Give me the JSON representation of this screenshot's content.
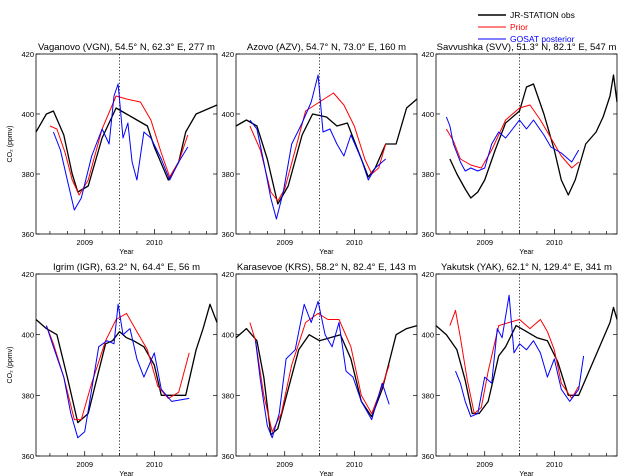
{
  "legend": [
    {
      "label": "JR-STATION obs",
      "color": "#000000"
    },
    {
      "label": "Prior",
      "color": "#ff0000"
    },
    {
      "label": "GOSAT posterior",
      "color": "#0000ff"
    }
  ],
  "chart_data": [
    {
      "type": "line",
      "title": "Vaganovo (VGN), 54.5°  N,  62.3°  E, 277 m",
      "xlabel": "Year",
      "ylabel": "CO₂ (ppmv)",
      "xlim": [
        2008.3,
        2010.9
      ],
      "ylim": [
        360,
        420
      ],
      "yticks": [
        360,
        380,
        400,
        420
      ],
      "xticks": [
        "2009",
        "2010"
      ],
      "xtick_values": [
        2009.0,
        2010.0
      ],
      "vline": 2009.5,
      "series": [
        {
          "name": "JR-STATION obs",
          "color": "#000000",
          "x": [
            2008.3,
            2008.45,
            2008.55,
            2008.7,
            2008.82,
            2008.9,
            2009.05,
            2009.25,
            2009.45,
            2009.6,
            2009.75,
            2009.9,
            2010.0,
            2010.2,
            2010.35,
            2010.45,
            2010.6,
            2010.9
          ],
          "y": [
            394,
            400,
            401,
            393,
            380,
            374,
            376,
            392,
            402,
            400,
            398,
            396,
            389,
            378,
            384,
            394,
            400,
            403
          ]
        },
        {
          "name": "Prior",
          "color": "#ff0000",
          "x": [
            2008.5,
            2008.6,
            2008.72,
            2008.82,
            2008.92,
            2009.05,
            2009.25,
            2009.45,
            2009.6,
            2009.8,
            2009.95,
            2010.1,
            2010.22,
            2010.35,
            2010.48
          ],
          "y": [
            396,
            395,
            387,
            378,
            373,
            378,
            395,
            406,
            405,
            404,
            398,
            387,
            379,
            384,
            393
          ]
        },
        {
          "name": "GOSAT posterior",
          "color": "#0000ff",
          "x": [
            2008.55,
            2008.65,
            2008.75,
            2008.85,
            2008.95,
            2009.1,
            2009.25,
            2009.35,
            2009.42,
            2009.48,
            2009.55,
            2009.62,
            2009.68,
            2009.75,
            2009.85,
            2009.95,
            2010.1,
            2010.22,
            2010.35,
            2010.48
          ],
          "y": [
            394,
            388,
            378,
            368,
            372,
            386,
            395,
            390,
            406,
            410,
            392,
            397,
            384,
            378,
            394,
            392,
            385,
            378,
            384,
            389
          ]
        }
      ]
    },
    {
      "type": "line",
      "title": "Azovo (AZV), 54.7°  N,  73.0°  E, 160 m",
      "xlabel": "Year",
      "ylabel": "",
      "xlim": [
        2008.3,
        2010.9
      ],
      "ylim": [
        360,
        420
      ],
      "yticks": [
        360,
        380,
        400,
        420
      ],
      "xticks": [
        "2009",
        "2010"
      ],
      "xtick_values": [
        2009.0,
        2010.0
      ],
      "vline": 2009.5,
      "series": [
        {
          "name": "JR-STATION obs",
          "color": "#000000",
          "x": [
            2008.3,
            2008.45,
            2008.6,
            2008.75,
            2008.9,
            2009.05,
            2009.25,
            2009.4,
            2009.6,
            2009.75,
            2009.9,
            2010.05,
            2010.2,
            2010.3,
            2010.45,
            2010.6,
            2010.75,
            2010.9
          ],
          "y": [
            396,
            398,
            396,
            385,
            370,
            376,
            393,
            400,
            399,
            396,
            397,
            388,
            379,
            382,
            390,
            390,
            402,
            405
          ]
        },
        {
          "name": "Prior",
          "color": "#ff0000",
          "x": [
            2008.5,
            2008.65,
            2008.8,
            2008.9,
            2009.0,
            2009.15,
            2009.3,
            2009.5,
            2009.7,
            2009.85,
            2010.0,
            2010.15,
            2010.25,
            2010.35,
            2010.45
          ],
          "y": [
            396,
            388,
            374,
            371,
            375,
            388,
            401,
            404,
            407,
            403,
            396,
            385,
            380,
            382,
            390
          ]
        },
        {
          "name": "GOSAT posterior",
          "color": "#0000ff",
          "x": [
            2008.5,
            2008.6,
            2008.7,
            2008.8,
            2008.88,
            2008.98,
            2009.1,
            2009.25,
            2009.38,
            2009.48,
            2009.55,
            2009.65,
            2009.75,
            2009.85,
            2009.95,
            2010.1,
            2010.2,
            2010.3,
            2010.45
          ],
          "y": [
            398,
            395,
            384,
            372,
            365,
            374,
            390,
            397,
            404,
            413,
            394,
            395,
            390,
            386,
            393,
            385,
            378,
            382,
            385
          ]
        }
      ]
    },
    {
      "type": "line",
      "title": "Savvushka (SVV), 51.3°  N,  82.1°  E, 547 m",
      "xlabel": "Year",
      "ylabel": "",
      "xlim": [
        2008.3,
        2010.9
      ],
      "ylim": [
        360,
        420
      ],
      "yticks": [
        360,
        380,
        400,
        420
      ],
      "xticks": [
        "2009",
        "2010"
      ],
      "xtick_values": [
        2009.0,
        2010.0
      ],
      "vline": 2009.5,
      "series": [
        {
          "name": "JR-STATION obs",
          "color": "#000000",
          "x": [
            2008.5,
            2008.6,
            2008.72,
            2008.8,
            2008.9,
            2009.0,
            2009.15,
            2009.3,
            2009.5,
            2009.6,
            2009.7,
            2009.85,
            2010.0,
            2010.1,
            2010.2,
            2010.3,
            2010.45,
            2010.6,
            2010.7,
            2010.8,
            2010.85,
            2010.9
          ],
          "y": [
            385,
            380,
            375,
            372,
            374,
            378,
            388,
            397,
            401,
            409,
            410,
            400,
            388,
            378,
            373,
            378,
            390,
            394,
            399,
            406,
            413,
            404
          ]
        },
        {
          "name": "Prior",
          "color": "#ff0000",
          "x": [
            2008.45,
            2008.55,
            2008.65,
            2008.8,
            2008.95,
            2009.1,
            2009.3,
            2009.5,
            2009.65,
            2009.8,
            2009.95,
            2010.1,
            2010.25,
            2010.35
          ],
          "y": [
            395,
            391,
            385,
            383,
            382,
            388,
            398,
            402,
            403,
            398,
            392,
            386,
            382,
            384
          ]
        },
        {
          "name": "GOSAT posterior",
          "color": "#0000ff",
          "x": [
            2008.45,
            2008.5,
            2008.55,
            2008.65,
            2008.72,
            2008.8,
            2008.9,
            2009.0,
            2009.1,
            2009.2,
            2009.3,
            2009.4,
            2009.5,
            2009.6,
            2009.7,
            2009.85,
            2009.95,
            2010.1,
            2010.25,
            2010.35
          ],
          "y": [
            399,
            396,
            390,
            384,
            381,
            382,
            381,
            382,
            390,
            394,
            392,
            395,
            398,
            395,
            398,
            393,
            389,
            387,
            384,
            388
          ]
        }
      ]
    },
    {
      "type": "line",
      "title": "Igrim (IGR), 63.2°  N,  64.4°  E,  56 m",
      "xlabel": "Year",
      "ylabel": "CO₂ (ppmv)",
      "xlim": [
        2008.3,
        2010.9
      ],
      "ylim": [
        360,
        420
      ],
      "yticks": [
        360,
        380,
        400,
        420
      ],
      "xticks": [
        "2009",
        "2010"
      ],
      "xtick_values": [
        2009.0,
        2010.0
      ],
      "vline": 2009.5,
      "series": [
        {
          "name": "JR-STATION obs",
          "color": "#000000",
          "x": [
            2008.3,
            2008.45,
            2008.6,
            2008.75,
            2008.9,
            2009.05,
            2009.2,
            2009.3,
            2009.4,
            2009.5,
            2009.6,
            2009.7,
            2009.85,
            2010.0,
            2010.1,
            2010.25,
            2010.45,
            2010.6,
            2010.7,
            2010.8,
            2010.9
          ],
          "y": [
            405,
            402,
            400,
            386,
            371,
            374,
            388,
            397,
            398,
            401,
            399,
            398,
            396,
            390,
            380,
            380,
            380,
            395,
            402,
            410,
            404
          ]
        },
        {
          "name": "Prior",
          "color": "#ff0000",
          "x": [
            2008.45,
            2008.55,
            2008.7,
            2008.85,
            2008.95,
            2009.1,
            2009.3,
            2009.45,
            2009.6,
            2009.75,
            2009.9,
            2010.05,
            2010.2,
            2010.35,
            2010.5
          ],
          "y": [
            403,
            397,
            386,
            372,
            372,
            384,
            398,
            405,
            407,
            401,
            395,
            383,
            379,
            381,
            394
          ]
        },
        {
          "name": "GOSAT posterior",
          "color": "#0000ff",
          "x": [
            2008.45,
            2008.55,
            2008.7,
            2008.8,
            2008.9,
            2009.0,
            2009.1,
            2009.2,
            2009.32,
            2009.42,
            2009.48,
            2009.55,
            2009.65,
            2009.75,
            2009.85,
            2010.0,
            2010.1,
            2010.25,
            2010.5
          ],
          "y": [
            403,
            396,
            386,
            374,
            366,
            368,
            382,
            396,
            398,
            397,
            410,
            400,
            402,
            392,
            386,
            394,
            382,
            378,
            379
          ]
        }
      ]
    },
    {
      "type": "line",
      "title": "Karasevoe (KRS), 58.2°  N,  82.4°  E, 143 m",
      "xlabel": "Year",
      "ylabel": "",
      "xlim": [
        2008.3,
        2010.9
      ],
      "ylim": [
        360,
        420
      ],
      "yticks": [
        360,
        380,
        400,
        420
      ],
      "xticks": [
        "2009",
        "2010"
      ],
      "xtick_values": [
        2009.0,
        2010.0
      ],
      "vline": 2009.5,
      "series": [
        {
          "name": "JR-STATION obs",
          "color": "#000000",
          "x": [
            2008.3,
            2008.45,
            2008.6,
            2008.7,
            2008.8,
            2008.9,
            2009.05,
            2009.2,
            2009.35,
            2009.5,
            2009.65,
            2009.8,
            2009.95,
            2010.1,
            2010.25,
            2010.4,
            2010.5,
            2010.6,
            2010.75,
            2010.9
          ],
          "y": [
            399,
            402,
            398,
            386,
            367,
            369,
            382,
            395,
            400,
            398,
            399,
            400,
            392,
            378,
            373,
            382,
            391,
            400,
            402,
            403
          ]
        },
        {
          "name": "Prior",
          "color": "#ff0000",
          "x": [
            2008.5,
            2008.58,
            2008.7,
            2008.82,
            2008.95,
            2009.1,
            2009.3,
            2009.48,
            2009.62,
            2009.78,
            2009.95,
            2010.1,
            2010.25,
            2010.4,
            2010.5
          ],
          "y": [
            404,
            398,
            380,
            368,
            374,
            390,
            404,
            407,
            405,
            405,
            396,
            380,
            374,
            383,
            390
          ]
        },
        {
          "name": "GOSAT posterior",
          "color": "#0000ff",
          "x": [
            2008.58,
            2008.65,
            2008.75,
            2008.82,
            2008.92,
            2009.02,
            2009.15,
            2009.28,
            2009.38,
            2009.48,
            2009.58,
            2009.68,
            2009.78,
            2009.88,
            2009.98,
            2010.1,
            2010.25,
            2010.4,
            2010.5
          ],
          "y": [
            398,
            385,
            370,
            366,
            374,
            392,
            395,
            410,
            404,
            411,
            400,
            396,
            404,
            388,
            386,
            378,
            372,
            384,
            377
          ]
        }
      ]
    },
    {
      "type": "line",
      "title": "Yakutsk (YAK), 62.1°  N, 129.4°  E, 341 m",
      "xlabel": "Year",
      "ylabel": "",
      "xlim": [
        2008.3,
        2010.9
      ],
      "ylim": [
        360,
        420
      ],
      "yticks": [
        360,
        380,
        400,
        420
      ],
      "xticks": [
        "2009",
        "2010"
      ],
      "xtick_values": [
        2009.0,
        2010.0
      ],
      "vline": 2009.5,
      "series": [
        {
          "name": "JR-STATION obs",
          "color": "#000000",
          "x": [
            2008.3,
            2008.45,
            2008.6,
            2008.72,
            2008.82,
            2008.92,
            2009.05,
            2009.2,
            2009.3,
            2009.45,
            2009.6,
            2009.75,
            2009.9,
            2010.05,
            2010.2,
            2010.35,
            2010.8,
            2010.85,
            2010.9
          ],
          "y": [
            403,
            400,
            395,
            385,
            374,
            374,
            378,
            393,
            396,
            403,
            401,
            399,
            398,
            391,
            380,
            380,
            404,
            409,
            405
          ]
        },
        {
          "name": "Prior",
          "color": "#ff0000",
          "x": [
            2008.5,
            2008.58,
            2008.65,
            2008.75,
            2008.85,
            2008.95,
            2009.05,
            2009.2,
            2009.35,
            2009.5,
            2009.65,
            2009.8,
            2009.9,
            2010.0,
            2010.1,
            2010.25,
            2010.35
          ],
          "y": [
            403,
            408,
            399,
            385,
            374,
            376,
            388,
            403,
            404,
            405,
            402,
            405,
            401,
            395,
            384,
            379,
            383
          ]
        },
        {
          "name": "GOSAT posterior",
          "color": "#0000ff",
          "x": [
            2008.58,
            2008.65,
            2008.72,
            2008.8,
            2008.9,
            2009.0,
            2009.1,
            2009.18,
            2009.25,
            2009.35,
            2009.42,
            2009.5,
            2009.6,
            2009.7,
            2009.8,
            2009.9,
            2010.0,
            2010.1,
            2010.22,
            2010.35,
            2010.42
          ],
          "y": [
            388,
            384,
            378,
            373,
            374,
            386,
            384,
            402,
            399,
            413,
            394,
            397,
            395,
            398,
            394,
            386,
            392,
            382,
            378,
            382,
            393
          ]
        }
      ]
    }
  ]
}
